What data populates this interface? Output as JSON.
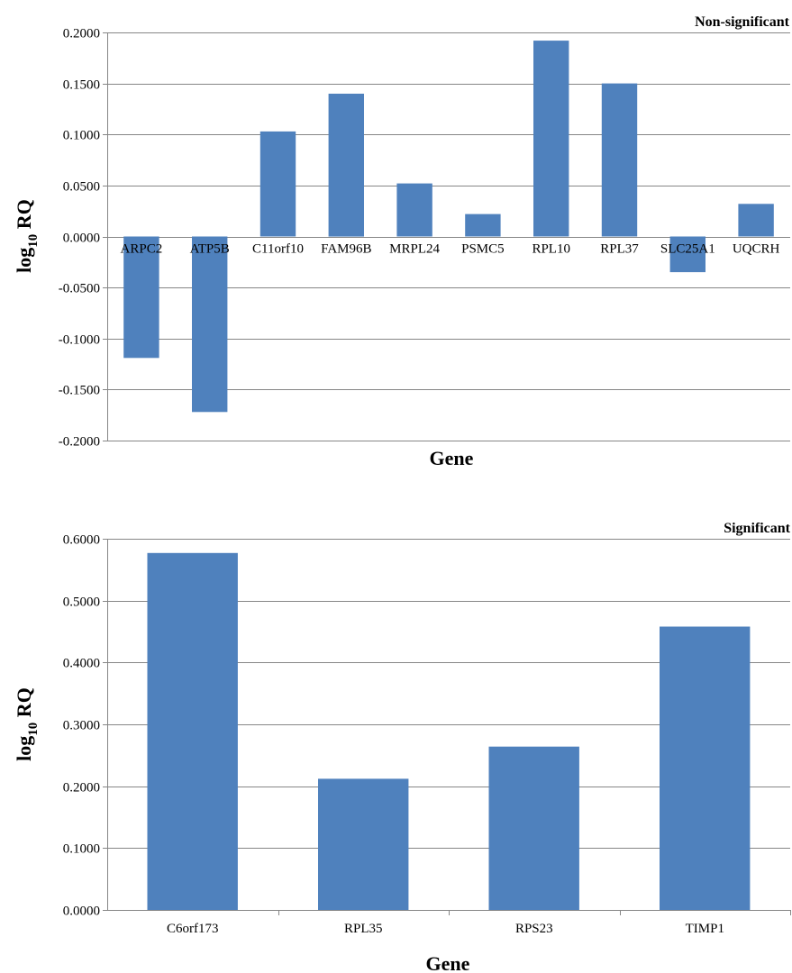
{
  "chart_data": [
    {
      "type": "bar",
      "title": "Non-significant",
      "xlabel": "Gene",
      "ylabel": "log",
      "ylabel_sub": "10",
      "ylabel_suffix": " RQ",
      "ylim": [
        -0.2,
        0.2
      ],
      "ytick_step": 0.05,
      "yticks": [
        "0.2000",
        "0.1500",
        "0.1000",
        "0.0500",
        "0.0000",
        "-0.0500",
        "-0.1000",
        "-0.1500",
        "-0.2000"
      ],
      "category_labels_position": "at-zero-line",
      "grid": true,
      "categories": [
        "ARPC2",
        "ATP5B",
        "C11orf10",
        "FAM96B",
        "MRPL24",
        "PSMC5",
        "RPL10",
        "RPL37",
        "SLC25A1",
        "UQCRH"
      ],
      "values": [
        -0.119,
        -0.172,
        0.103,
        0.14,
        0.052,
        0.022,
        0.192,
        0.15,
        -0.035,
        0.032
      ],
      "bar_color": "#4F81BD"
    },
    {
      "type": "bar",
      "title": "Significant",
      "xlabel": "Gene",
      "ylabel": "log",
      "ylabel_sub": "10",
      "ylabel_suffix": " RQ",
      "ylim": [
        0,
        0.6
      ],
      "ytick_step": 0.1,
      "yticks": [
        "0.6000",
        "0.5000",
        "0.4000",
        "0.3000",
        "0.2000",
        "0.1000",
        "0.0000"
      ],
      "category_labels_position": "bottom",
      "grid": true,
      "categories": [
        "C6orf173",
        "RPL35",
        "RPS23",
        "TIMP1"
      ],
      "values": [
        0.577,
        0.212,
        0.264,
        0.458
      ],
      "bar_color": "#4F81BD"
    }
  ]
}
